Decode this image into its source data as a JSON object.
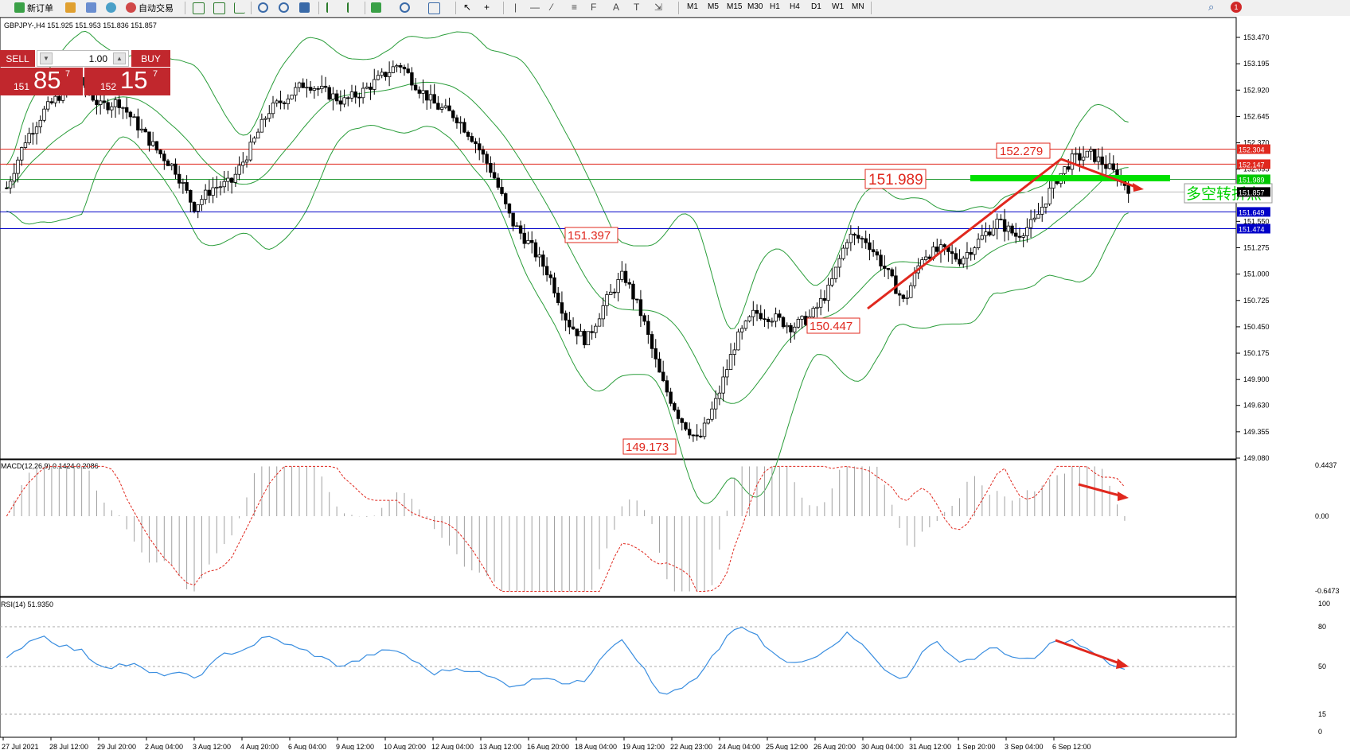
{
  "toolbar": {
    "new_order": "新订单",
    "auto_trading": "自动交易",
    "timeframes": [
      "M1",
      "M5",
      "M15",
      "M30",
      "H1",
      "H4",
      "D1",
      "W1",
      "MN"
    ],
    "icons": [
      "new-order-icon",
      "history-icon",
      "navigator-icon",
      "terminal-icon",
      "auto-trading-icon",
      "bar-chart-icon",
      "candle-chart-icon",
      "line-chart-icon",
      "zoom-in-icon",
      "zoom-out-icon",
      "tile-windows-icon",
      "periods-icon",
      "template-icon",
      "indicators-icon",
      "cursor-icon",
      "crosshair-icon",
      "vertical-line-icon",
      "horizontal-line-icon",
      "trendline-icon",
      "fibonacci-icon",
      "text-icon",
      "text-label-icon",
      "arrows-icon",
      "search-icon",
      "notifications-icon"
    ],
    "notification_count": "1"
  },
  "chart_header": "GBPJPY-,H4  151.925 151.953 151.836 151.857",
  "one_click": {
    "sell_label": "SELL",
    "buy_label": "BUY",
    "lot": "1.00",
    "sell_prefix": "151",
    "sell_big": "85",
    "sell_sup": "7",
    "buy_prefix": "152",
    "buy_big": "15",
    "buy_sup": "7"
  },
  "price_axis": [
    "153.470",
    "153.195",
    "152.920",
    "152.645",
    "152.370",
    "152.095",
    "151.550",
    "151.275",
    "151.000",
    "150.725",
    "150.450",
    "150.175",
    "149.900",
    "149.630",
    "149.355",
    "149.080"
  ],
  "price_tags": [
    {
      "text": "152.304",
      "color": "#e0281e"
    },
    {
      "text": "152.147",
      "color": "#e0281e"
    },
    {
      "text": "151.989",
      "color": "#00c800"
    },
    {
      "text": "151.857",
      "color": "#000000"
    },
    {
      "text": "151.649",
      "color": "#0000c8"
    },
    {
      "text": "151.474",
      "color": "#0000c8"
    }
  ],
  "annotations": {
    "labels": [
      "152.279",
      "151.989",
      "151.397",
      "150.447",
      "149.173"
    ],
    "pivot_text": "多空转折点"
  },
  "macd": {
    "title": "MACD(12,26,9) 0.1424 0.2086",
    "axis": [
      "0.4437",
      "0.00",
      "-0.6473"
    ]
  },
  "rsi": {
    "title": "RSI(14) 51.9350",
    "axis": [
      "100",
      "80",
      "50",
      "15",
      "0"
    ]
  },
  "time_axis": [
    "27 Jul 2021",
    "28 Jul 12:00",
    "29 Jul 20:00",
    "2 Aug 04:00",
    "3 Aug 12:00",
    "4 Aug 20:00",
    "6 Aug 04:00",
    "9 Aug 12:00",
    "10 Aug 20:00",
    "12 Aug 04:00",
    "13 Aug 12:00",
    "16 Aug 20:00",
    "18 Aug 04:00",
    "19 Aug 12:00",
    "22 Aug 23:00",
    "24 Aug 04:00",
    "25 Aug 12:00",
    "26 Aug 20:00",
    "30 Aug 04:00",
    "31 Aug 12:00",
    "1 Sep 20:00",
    "3 Sep 04:00",
    "6 Sep 12:00"
  ],
  "colors": {
    "bollinger": "#2a9d3a",
    "resistance_line": "#e0281e",
    "support_line": "#2828c8",
    "pivot_line": "#00e000",
    "trend_arrow": "#e0281e",
    "macd_signal": "#e0281e",
    "rsi_line": "#3a8ee0",
    "sell": "#c1272d"
  },
  "chart_data": {
    "type": "candlestick",
    "symbol": "GBPJPY-",
    "timeframe": "H4",
    "ylim": [
      149.08,
      153.55
    ],
    "close_path": [
      151.9,
      152.4,
      152.7,
      152.9,
      153.0,
      152.75,
      152.8,
      152.55,
      152.3,
      152.1,
      151.7,
      151.9,
      151.95,
      152.3,
      152.7,
      152.85,
      153.0,
      152.9,
      152.8,
      152.9,
      153.05,
      153.2,
      152.95,
      152.75,
      152.65,
      152.4,
      152.05,
      151.55,
      151.3,
      151.0,
      150.5,
      150.3,
      150.7,
      151.0,
      150.55,
      149.9,
      149.5,
      149.25,
      149.7,
      150.3,
      150.6,
      150.55,
      150.45,
      150.55,
      150.85,
      151.4,
      151.35,
      151.05,
      150.7,
      151.2,
      151.25,
      151.15,
      151.35,
      151.55,
      151.4,
      151.55,
      151.95,
      152.2,
      152.25,
      152.1,
      151.9
    ],
    "levels": [
      152.304,
      152.147,
      151.989,
      151.857,
      151.649,
      151.474
    ],
    "marked_points": [
      152.279,
      151.989,
      151.397,
      150.447,
      149.173
    ],
    "macd_value": 0.1424,
    "macd_signal_value": 0.2086,
    "macd_range": [
      -0.6473,
      0.4437
    ],
    "rsi_value": 51.935,
    "rsi_levels": [
      80,
      50,
      15
    ]
  }
}
